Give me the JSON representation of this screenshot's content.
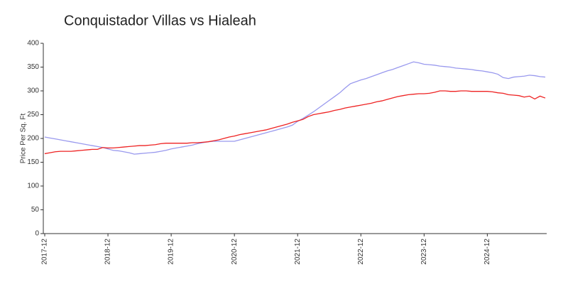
{
  "chart_data": {
    "type": "line",
    "title": "Conquistador Villas vs Hialeah",
    "ylabel": "Price Per Sq. Ft",
    "x": [
      "2017-12",
      "2018-01",
      "2018-02",
      "2018-03",
      "2018-04",
      "2018-05",
      "2018-06",
      "2018-07",
      "2018-08",
      "2018-09",
      "2018-10",
      "2018-11",
      "2018-12",
      "2019-01",
      "2019-02",
      "2019-03",
      "2019-04",
      "2019-05",
      "2019-06",
      "2019-07",
      "2019-08",
      "2019-09",
      "2019-10",
      "2019-11",
      "2019-12",
      "2020-01",
      "2020-02",
      "2020-03",
      "2020-04",
      "2020-05",
      "2020-06",
      "2020-07",
      "2020-08",
      "2020-09",
      "2020-10",
      "2020-11",
      "2020-12",
      "2021-01",
      "2021-02",
      "2021-03",
      "2021-04",
      "2021-05",
      "2021-06",
      "2021-07",
      "2021-08",
      "2021-09",
      "2021-10",
      "2021-11",
      "2021-12",
      "2022-01",
      "2022-02",
      "2022-03",
      "2022-04",
      "2022-05",
      "2022-06",
      "2022-07",
      "2022-08",
      "2022-09",
      "2022-10",
      "2022-11",
      "2022-12",
      "2023-01",
      "2023-02",
      "2023-03",
      "2023-04",
      "2023-05",
      "2023-06",
      "2023-07",
      "2023-08",
      "2023-09",
      "2023-10",
      "2023-11",
      "2023-12",
      "2024-01",
      "2024-02",
      "2024-03",
      "2024-04",
      "2024-05",
      "2024-06",
      "2024-07",
      "2024-08",
      "2024-09",
      "2024-10",
      "2024-11",
      "2024-12",
      "2025-01",
      "2025-02",
      "2025-03",
      "2025-04",
      "2025-05",
      "2025-06",
      "2025-07",
      "2025-08",
      "2025-09",
      "2025-10",
      "2025-11"
    ],
    "series": [
      {
        "name": "Conquistador Villas",
        "color": "#9999ee",
        "values": [
          203,
          201,
          199,
          197,
          195,
          193,
          191,
          189,
          187,
          185,
          183,
          181,
          178,
          175,
          174,
          172,
          170,
          167,
          168,
          169,
          170,
          171,
          173,
          175,
          178,
          180,
          182,
          184,
          186,
          189,
          191,
          193,
          194,
          194,
          194,
          194,
          194,
          197,
          200,
          203,
          206,
          209,
          212,
          215,
          218,
          221,
          224,
          228,
          236,
          242,
          249,
          256,
          264,
          272,
          280,
          288,
          296,
          306,
          315,
          319,
          323,
          326,
          330,
          334,
          338,
          342,
          345,
          349,
          353,
          357,
          361,
          359,
          356,
          355,
          354,
          352,
          351,
          350,
          348,
          347,
          346,
          345,
          343,
          342,
          340,
          338,
          335,
          328,
          326,
          329,
          330,
          331,
          333,
          332,
          330,
          329
        ]
      },
      {
        "name": "Hialeah",
        "color": "#ee2222",
        "values": [
          168,
          170,
          172,
          173,
          173,
          173,
          174,
          175,
          176,
          177,
          177,
          181,
          180,
          180,
          181,
          182,
          183,
          184,
          185,
          185,
          186,
          187,
          189,
          190,
          190,
          190,
          190,
          190,
          191,
          191,
          192,
          193,
          195,
          197,
          200,
          203,
          205,
          208,
          210,
          212,
          214,
          216,
          218,
          221,
          224,
          227,
          230,
          234,
          237,
          240,
          246,
          250,
          252,
          254,
          256,
          259,
          261,
          264,
          266,
          268,
          270,
          272,
          274,
          277,
          279,
          282,
          285,
          288,
          290,
          292,
          293,
          294,
          294,
          295,
          297,
          300,
          300,
          299,
          299,
          300,
          300,
          299,
          299,
          299,
          299,
          298,
          296,
          295,
          292,
          291,
          290,
          287,
          289,
          283,
          289,
          285
        ]
      }
    ],
    "xlim": [
      "2017-12",
      "2025-11"
    ],
    "xticks": [
      "2017-12",
      "2018-12",
      "2019-12",
      "2020-12",
      "2021-12",
      "2022-12",
      "2023-12",
      "2024-12"
    ],
    "ylim": [
      0,
      400
    ],
    "yticks": [
      0,
      50,
      100,
      150,
      200,
      250,
      300,
      350,
      400
    ],
    "grid": false
  }
}
